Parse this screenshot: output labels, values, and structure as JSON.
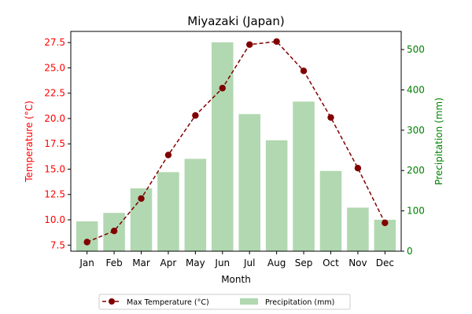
{
  "chart_data": {
    "type": "bar",
    "title": "Miyazaki (Japan)",
    "xlabel": "Month",
    "categories": [
      "Jan",
      "Feb",
      "Mar",
      "Apr",
      "May",
      "Jun",
      "Jul",
      "Aug",
      "Sep",
      "Oct",
      "Nov",
      "Dec"
    ],
    "left_axis": {
      "label": "Temperature (°C)",
      "color": "#ff0000",
      "ylim": [
        6.9,
        28.6
      ],
      "ticks": [
        "7.5",
        "10.0",
        "12.5",
        "15.0",
        "17.5",
        "20.0",
        "22.5",
        "25.0",
        "27.5"
      ]
    },
    "right_axis": {
      "label": "Precipitation (mm)",
      "color": "#008000",
      "ylim": [
        0,
        545
      ],
      "ticks": [
        "0",
        "100",
        "200",
        "300",
        "400",
        "500"
      ]
    },
    "series": [
      {
        "name": "Max Temperature (°C)",
        "type": "line",
        "axis": "left",
        "color": "#800000",
        "values": [
          7.8,
          8.9,
          12.1,
          16.4,
          20.3,
          23.0,
          27.3,
          27.6,
          24.7,
          20.1,
          15.1,
          9.7
        ]
      },
      {
        "name": "Precipitation (mm)",
        "type": "bar",
        "axis": "right",
        "color": "#b1d8b1",
        "values": [
          74,
          95,
          156,
          196,
          229,
          518,
          340,
          275,
          371,
          199,
          108,
          78
        ]
      }
    ],
    "grid": false,
    "legend": "bottom-center"
  }
}
